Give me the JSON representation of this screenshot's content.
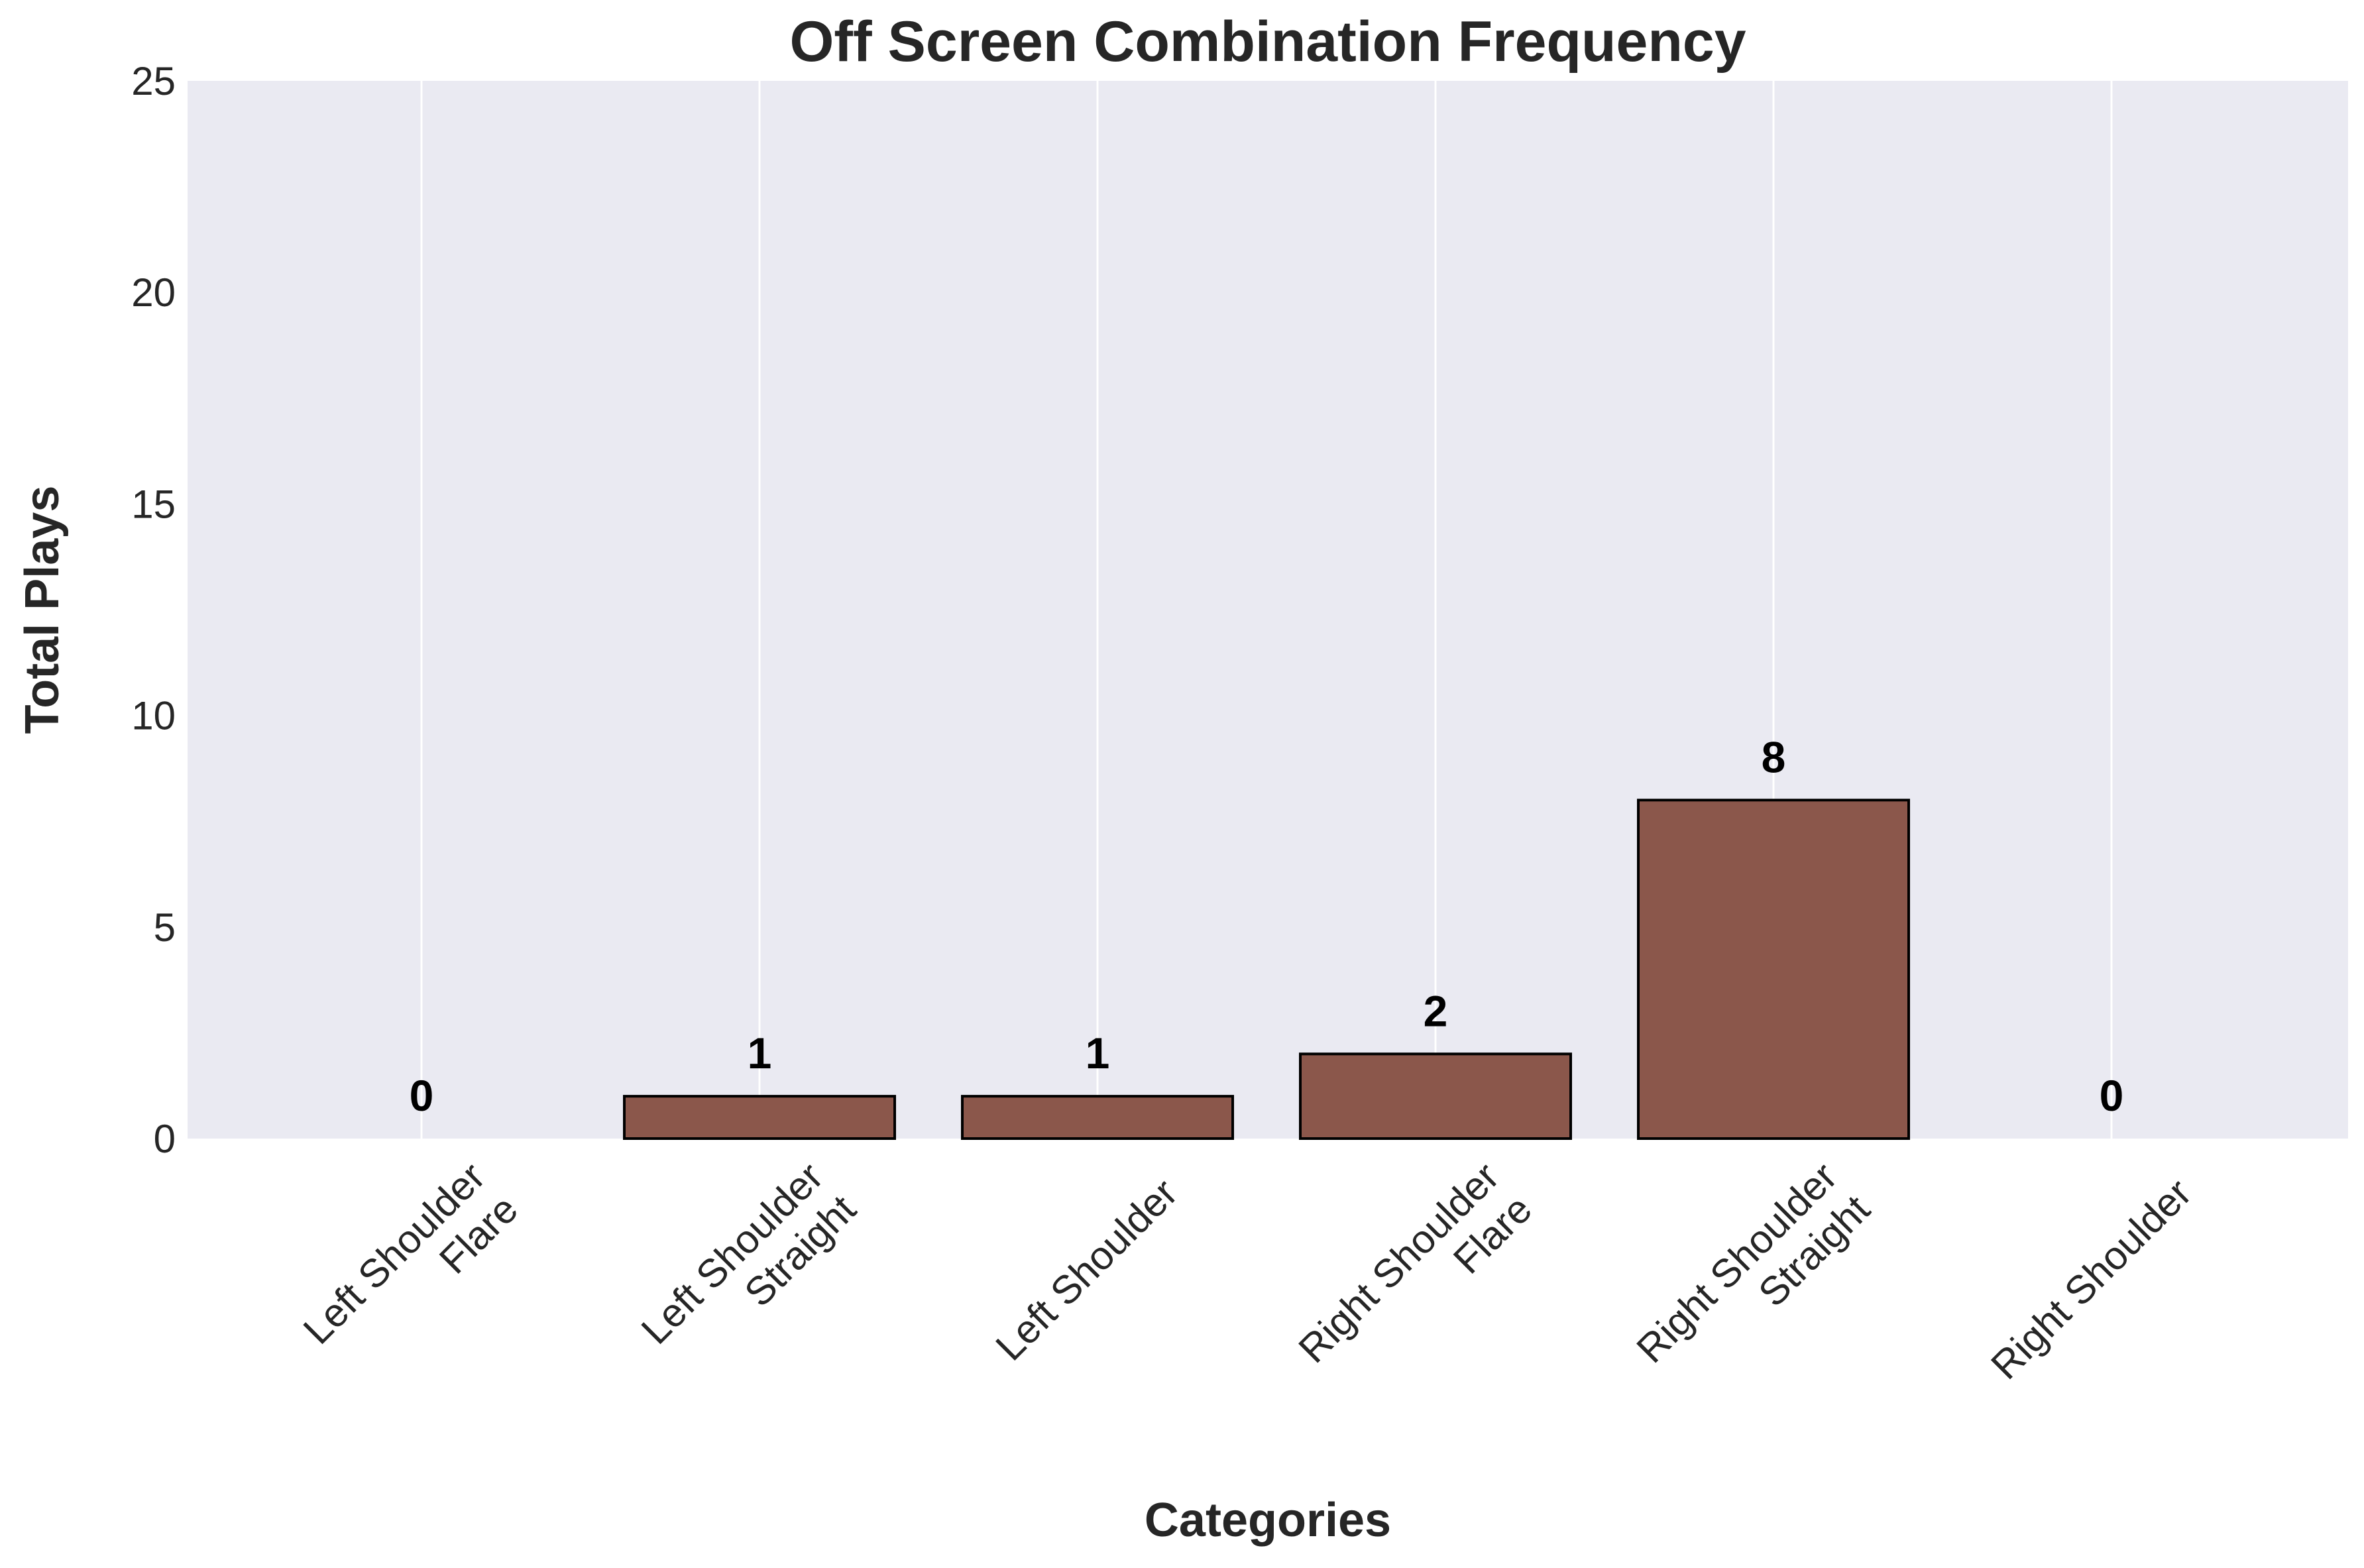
{
  "chart_data": {
    "type": "bar",
    "title": "Off Screen Combination Frequency",
    "xlabel": "Categories",
    "ylabel": "Total Plays",
    "categories": [
      [
        "Left Shoulder",
        "Flare"
      ],
      [
        "Left Shoulder",
        "Straight"
      ],
      [
        "Left Shoulder"
      ],
      [
        "Right Shoulder",
        "Flare"
      ],
      [
        "Right Shoulder",
        "Straight"
      ],
      [
        "Right Shoulder"
      ]
    ],
    "values": [
      0,
      1,
      1,
      2,
      8,
      0
    ],
    "ylim": [
      0,
      25
    ],
    "yticks": [
      0,
      5,
      10,
      15,
      20,
      25
    ],
    "grid": "vertical",
    "colors": {
      "bar": "#8b574b",
      "bar_edge": "#000000",
      "plot_background": "#eaeaf2",
      "grid": "#ffffff"
    }
  }
}
